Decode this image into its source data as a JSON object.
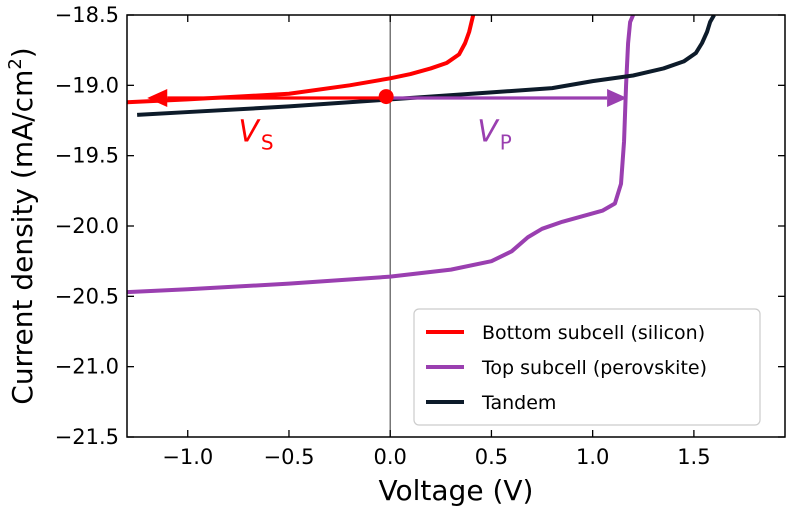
{
  "chart_data": {
    "type": "line",
    "xlabel": "Voltage (V)",
    "ylabel": "Current density (mA/cm²)",
    "ylabel_main": "Current density (mA/cm",
    "ylabel_sup": "2",
    "ylabel_close": ")",
    "xlim": [
      -1.3,
      1.95
    ],
    "ylim": [
      -21.5,
      -18.5
    ],
    "xticks": [
      -1.0,
      -0.5,
      0.0,
      0.5,
      1.0,
      1.5
    ],
    "xtick_labels": [
      "−1.0",
      "−0.5",
      "0.0",
      "0.5",
      "1.0",
      "1.5"
    ],
    "yticks": [
      -18.5,
      -19.0,
      -19.5,
      -20.0,
      -20.5,
      -21.0,
      -21.5
    ],
    "ytick_labels": [
      "−18.5",
      "−19.0",
      "−19.5",
      "−20.0",
      "−20.5",
      "−21.0",
      "−21.5"
    ],
    "vertical_line_x": 0.0,
    "series": [
      {
        "name": "Bottom subcell (silicon)",
        "color": "#ff0000",
        "x": [
          -1.3,
          -1.0,
          -0.5,
          -0.2,
          0.0,
          0.1,
          0.2,
          0.28,
          0.34,
          0.37,
          0.39,
          0.4,
          0.41
        ],
        "y": [
          -19.12,
          -19.1,
          -19.06,
          -19.0,
          -18.95,
          -18.92,
          -18.88,
          -18.84,
          -18.78,
          -18.7,
          -18.62,
          -18.56,
          -18.5
        ]
      },
      {
        "name": "Top subcell (perovskite)",
        "color": "#9a3fb0",
        "x": [
          -1.3,
          -1.0,
          -0.5,
          0.0,
          0.3,
          0.5,
          0.6,
          0.68,
          0.75,
          0.85,
          0.95,
          1.05,
          1.11,
          1.14,
          1.155,
          1.165,
          1.175,
          1.185,
          1.2
        ],
        "y": [
          -20.47,
          -20.45,
          -20.41,
          -20.36,
          -20.31,
          -20.25,
          -20.18,
          -20.08,
          -20.02,
          -19.97,
          -19.93,
          -19.89,
          -19.84,
          -19.7,
          -19.4,
          -19.0,
          -18.7,
          -18.55,
          -18.5
        ]
      },
      {
        "name": "Tandem",
        "color": "#0d1b2a",
        "x": [
          -1.25,
          -1.0,
          -0.5,
          0.0,
          0.5,
          0.8,
          1.0,
          1.2,
          1.35,
          1.45,
          1.51,
          1.54,
          1.565,
          1.58,
          1.6
        ],
        "y": [
          -19.21,
          -19.19,
          -19.15,
          -19.1,
          -19.05,
          -19.02,
          -18.97,
          -18.93,
          -18.88,
          -18.83,
          -18.77,
          -18.7,
          -18.62,
          -18.55,
          -18.5
        ]
      }
    ],
    "annotations": {
      "marker": {
        "x": -0.02,
        "y": -19.08,
        "color": "#ff0000"
      },
      "arrow_s": {
        "from_x": -0.02,
        "to_x": -1.2,
        "y": -19.09,
        "color": "#ff0000"
      },
      "arrow_p": {
        "from_x": -0.02,
        "to_x": 1.17,
        "y": -19.09,
        "color": "#9a3fb0"
      },
      "label_s": {
        "main": "V",
        "sub": "S",
        "x": -0.75,
        "y": -19.4,
        "color": "#ff0000"
      },
      "label_p": {
        "main": "V",
        "sub": "P",
        "x": 0.43,
        "y": -19.4,
        "color": "#9a3fb0"
      }
    },
    "legend_location": "lower-right"
  }
}
